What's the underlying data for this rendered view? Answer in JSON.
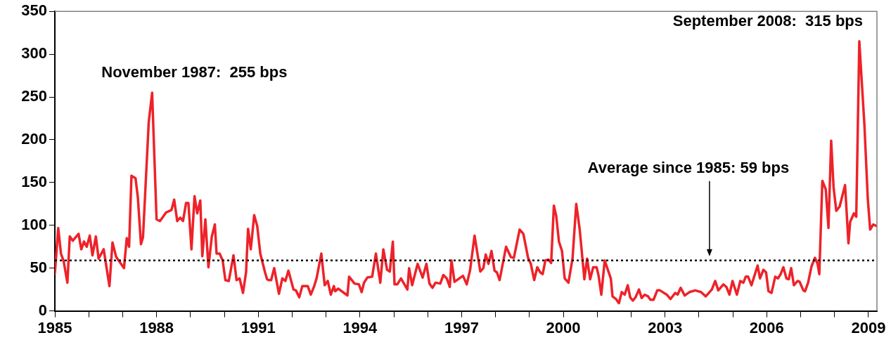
{
  "chart_data": {
    "type": "line",
    "series": [
      {
        "color": "#ee2229",
        "x": [
          1985.0,
          1985.1,
          1985.18,
          1985.26,
          1985.37,
          1985.44,
          1985.53,
          1985.7,
          1985.78,
          1985.86,
          1985.94,
          1986.03,
          1986.11,
          1986.21,
          1986.29,
          1986.44,
          1986.61,
          1986.7,
          1986.81,
          1987.04,
          1987.12,
          1987.19,
          1987.26,
          1987.38,
          1987.45,
          1987.54,
          1987.6,
          1987.77,
          1987.87,
          1988.0,
          1988.1,
          1988.28,
          1988.44,
          1988.52,
          1988.61,
          1988.7,
          1988.78,
          1988.87,
          1988.94,
          1989.03,
          1989.12,
          1989.2,
          1989.29,
          1989.35,
          1989.44,
          1989.53,
          1989.63,
          1989.72,
          1989.77,
          1989.86,
          1989.95,
          1990.03,
          1990.13,
          1990.27,
          1990.36,
          1990.45,
          1990.55,
          1990.64,
          1990.7,
          1990.78,
          1990.88,
          1990.97,
          1991.06,
          1991.2,
          1991.26,
          1991.31,
          1991.38,
          1991.47,
          1991.61,
          1991.71,
          1991.8,
          1991.89,
          1992.04,
          1992.11,
          1992.21,
          1992.3,
          1992.46,
          1992.55,
          1992.65,
          1992.72,
          1992.86,
          1992.96,
          1993.05,
          1993.14,
          1993.23,
          1993.27,
          1993.36,
          1993.53,
          1993.63,
          1993.68,
          1993.84,
          1993.97,
          1994.05,
          1994.12,
          1994.22,
          1994.36,
          1994.47,
          1994.6,
          1994.69,
          1994.8,
          1994.88,
          1994.97,
          1995.02,
          1995.1,
          1995.21,
          1995.4,
          1995.45,
          1995.54,
          1995.7,
          1995.85,
          1995.96,
          1996.05,
          1996.14,
          1996.23,
          1996.37,
          1996.46,
          1996.56,
          1996.65,
          1996.7,
          1996.79,
          1997.04,
          1997.15,
          1997.25,
          1997.38,
          1997.55,
          1997.64,
          1997.71,
          1997.79,
          1997.88,
          1997.97,
          1998.04,
          1998.12,
          1998.31,
          1998.45,
          1998.54,
          1998.71,
          1998.82,
          1998.96,
          1999.04,
          1999.14,
          1999.23,
          1999.32,
          1999.39,
          1999.47,
          1999.56,
          1999.64,
          1999.72,
          1999.79,
          1999.87,
          1999.96,
          2000.04,
          2000.15,
          2000.27,
          2000.38,
          2000.48,
          2000.62,
          2000.7,
          2000.79,
          2000.88,
          2000.98,
          2001.04,
          2001.12,
          2001.22,
          2001.33,
          2001.4,
          2001.45,
          2001.55,
          2001.64,
          2001.72,
          2001.81,
          2001.9,
          2001.97,
          2002.05,
          2002.13,
          2002.23,
          2002.31,
          2002.4,
          2002.5,
          2002.57,
          2002.66,
          2002.77,
          2002.85,
          2003.05,
          2003.16,
          2003.3,
          2003.37,
          2003.46,
          2003.58,
          2003.72,
          2003.89,
          2004.06,
          2004.2,
          2004.38,
          2004.48,
          2004.57,
          2004.72,
          2004.81,
          2004.9,
          2004.99,
          2005.12,
          2005.22,
          2005.31,
          2005.38,
          2005.45,
          2005.55,
          2005.73,
          2005.8,
          2005.9,
          2005.98,
          2006.05,
          2006.14,
          2006.25,
          2006.33,
          2006.41,
          2006.49,
          2006.58,
          2006.65,
          2006.72,
          2006.8,
          2006.91,
          2006.97,
          2007.08,
          2007.13,
          2007.22,
          2007.32,
          2007.42,
          2007.5,
          2007.55,
          2007.64,
          2007.74,
          2007.82,
          2007.9,
          2007.97,
          2008.05,
          2008.15,
          2008.31,
          2008.41,
          2008.46,
          2008.57,
          2008.64,
          2008.73,
          2008.88,
          2008.98,
          2009.05,
          2009.14,
          2009.25
        ],
        "values": [
          44,
          97,
          67,
          58,
          33,
          87,
          82,
          90,
          72,
          81,
          75,
          88,
          65,
          87,
          61,
          72,
          29,
          80,
          63,
          50,
          85,
          75,
          158,
          155,
          132,
          78,
          86,
          221,
          255,
          107,
          105,
          115,
          118,
          130,
          105,
          109,
          105,
          126,
          126,
          72,
          134,
          114,
          129,
          64,
          107,
          51,
          87,
          101,
          67,
          67,
          59,
          36,
          35,
          65,
          36,
          38,
          21,
          45,
          96,
          72,
          112,
          99,
          67,
          45,
          37,
          36,
          36,
          50,
          20,
          38,
          35,
          47,
          25,
          24,
          16,
          29,
          29,
          19,
          29,
          38,
          67,
          30,
          35,
          19,
          29,
          23,
          26,
          21,
          18,
          40,
          32,
          31,
          22,
          33,
          39,
          40,
          67,
          33,
          72,
          48,
          46,
          81,
          31,
          31,
          38,
          25,
          50,
          30,
          55,
          39,
          55,
          32,
          27,
          33,
          32,
          42,
          38,
          28,
          59,
          34,
          41,
          31,
          48,
          88,
          46,
          50,
          66,
          55,
          70,
          47,
          45,
          36,
          75,
          63,
          62,
          95,
          90,
          62,
          55,
          36,
          51,
          45,
          43,
          59,
          60,
          56,
          123,
          111,
          81,
          70,
          38,
          33,
          61,
          125,
          96,
          37,
          61,
          37,
          51,
          51,
          41,
          19,
          59,
          46,
          38,
          17,
          14,
          9,
          22,
          19,
          30,
          16,
          12,
          16,
          25,
          15,
          19,
          17,
          13,
          13,
          24,
          24,
          19,
          14,
          21,
          19,
          27,
          18,
          22,
          24,
          22,
          17,
          25,
          35,
          24,
          31,
          28,
          19,
          35,
          19,
          35,
          33,
          40,
          40,
          30,
          53,
          38,
          48,
          45,
          23,
          21,
          40,
          38,
          43,
          51,
          38,
          37,
          50,
          30,
          35,
          34,
          24,
          23,
          33,
          52,
          62,
          55,
          43,
          152,
          142,
          97,
          199,
          145,
          117,
          122,
          147,
          79,
          104,
          114,
          110,
          315,
          218,
          131,
          95,
          101,
          99
        ]
      }
    ],
    "xlim": [
      1985,
      2009.25
    ],
    "xticks": [
      1985,
      {
        "value": 1986,
        "label": null
      },
      {
        "value": 1987,
        "label": null
      },
      1988,
      {
        "value": 1989,
        "label": null
      },
      {
        "value": 1990,
        "label": null
      },
      1991,
      {
        "value": 1992,
        "label": null
      },
      {
        "value": 1993,
        "label": null
      },
      1994,
      {
        "value": 1995,
        "label": null
      },
      {
        "value": 1996,
        "label": null
      },
      1997,
      {
        "value": 1998,
        "label": null
      },
      {
        "value": 1999,
        "label": null
      },
      2000,
      {
        "value": 2001,
        "label": null
      },
      {
        "value": 2002,
        "label": null
      },
      2003,
      {
        "value": 2004,
        "label": null
      },
      {
        "value": 2005,
        "label": null
      },
      2006,
      {
        "value": 2007,
        "label": null
      },
      {
        "value": 2008,
        "label": null
      },
      2009
    ],
    "ylim": [
      0,
      350
    ],
    "yticks": [
      0,
      50,
      100,
      150,
      200,
      250,
      300,
      350
    ],
    "grid": false,
    "legend": false,
    "marker": "none",
    "line_style": "solid",
    "ref_lines": [
      {
        "axis": "y",
        "value": 59,
        "label": "Average since 1985: 59 bps",
        "color": "#000000",
        "line_style": "dotted"
      }
    ],
    "annotations": [
      {
        "text": "November 1987:  255 bps",
        "x": 1987.87,
        "y": 255
      },
      {
        "text": "September 2008:  315 bps",
        "x": 2008.73,
        "y": 315
      }
    ]
  }
}
